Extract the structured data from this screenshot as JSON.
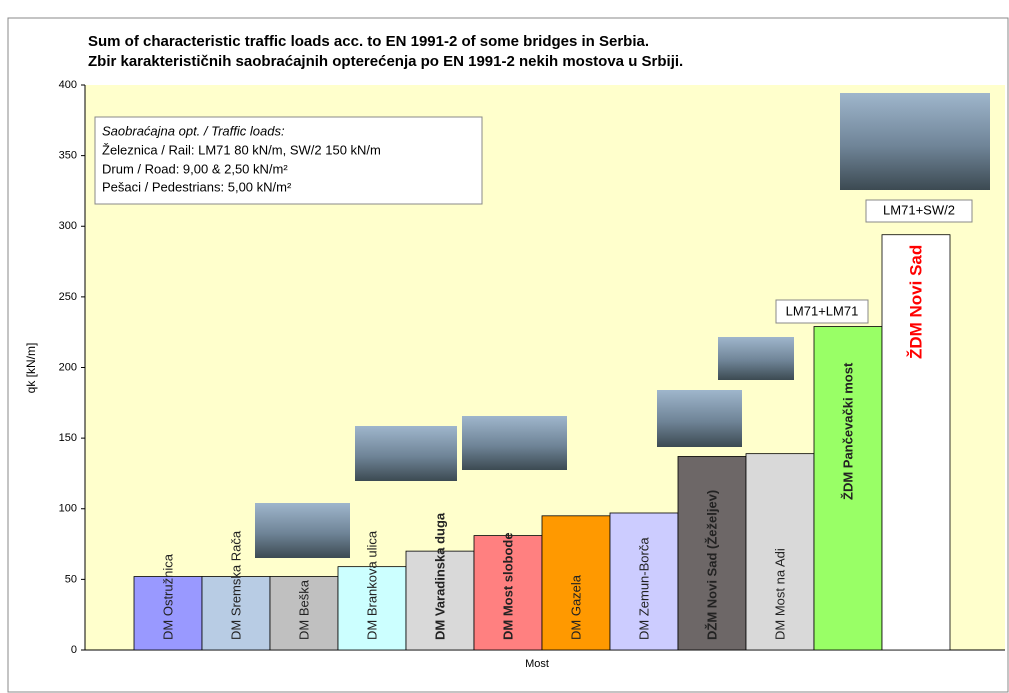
{
  "chart_data": {
    "type": "bar",
    "title": "Sum of characteristic  traffic loads acc. to EN 1991-2 of some bridges in Serbia.",
    "subtitle": "Zbir karakterističnih saobraćajnih opterećenja po EN 1991-2 nekih mostova u Srbiji.",
    "y_label": "qk [kN/m]",
    "x_label": "Most",
    "categories": [
      "DM Ostružnica",
      "DM Sremska Rača",
      "DM Beška",
      "DM Brankova ulica",
      "DM Varadinska duga",
      "DM Most slobode",
      "DM Gazela",
      "DM Zemun-Borča",
      "DŽM Novi Sad (Žeželjev)",
      "DM Most na Adi",
      "ŽDM Pančevački most",
      "ŽDM Novi Sad"
    ],
    "values": [
      52,
      52,
      52,
      59,
      70,
      81,
      95,
      97,
      137,
      139,
      229,
      294
    ],
    "colors": [
      "#9999ff",
      "#b8cce4",
      "#c0c0c0",
      "#ccffff",
      "#d9d9d9",
      "#ff8080",
      "#ff9900",
      "#ccccff",
      "#6d6767",
      "#d9d9d9",
      "#99ff66",
      "#ffffff"
    ],
    "ylim": [
      0,
      400
    ],
    "yticks": [
      0,
      50,
      100,
      150,
      200,
      250,
      300,
      350,
      400
    ],
    "legend": {
      "title": "Saobraćajna opt. / Traffic loads:",
      "lines": [
        "Železnica  / Rail: LM71 80 kN/m, SW/2 150 kN/m",
        "Drum / Road: 9,00 & 2,50 kN/m²",
        "Pešaci / Pedestrians:  5,00 kN/m²"
      ]
    },
    "annotations": [
      "LM71+LM71",
      "LM71+SW/2"
    ]
  }
}
